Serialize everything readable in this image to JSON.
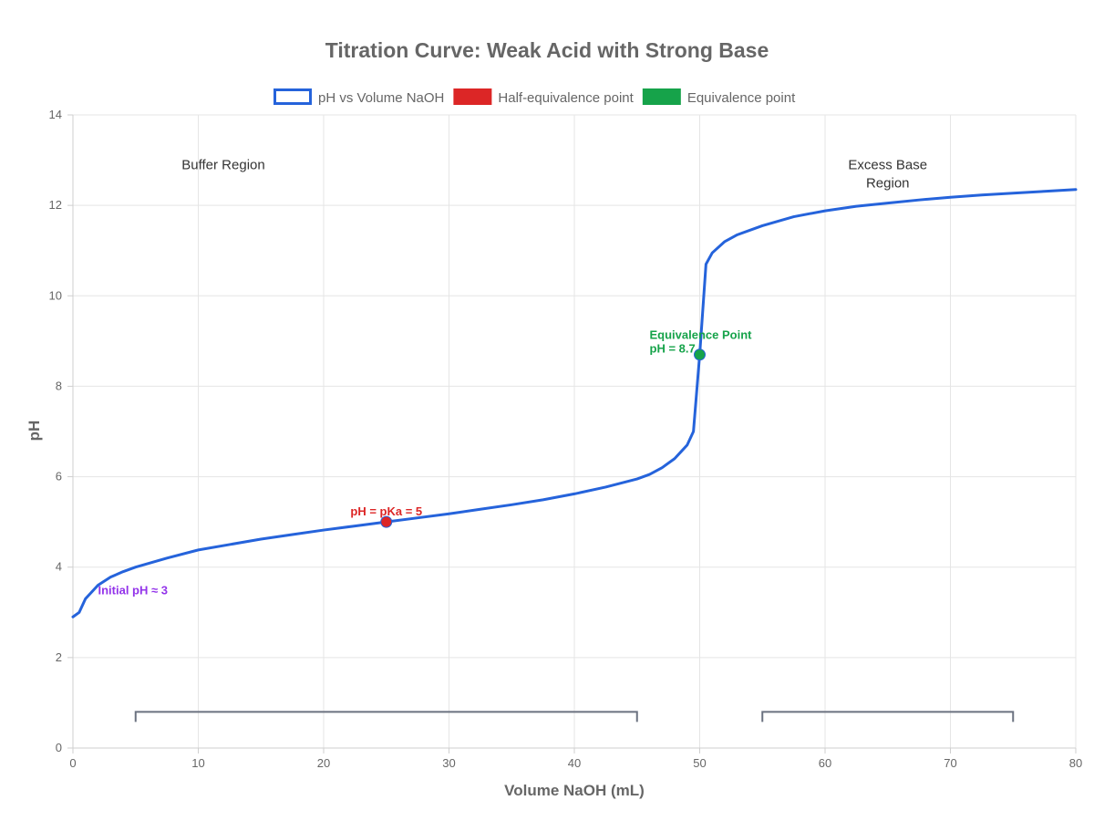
{
  "chart_data": {
    "type": "line",
    "title": "Titration Curve: Weak Acid with Strong Base",
    "xlabel": "Volume NaOH (mL)",
    "ylabel": "pH",
    "xlim": [
      0,
      80
    ],
    "ylim": [
      0,
      14
    ],
    "x_ticks": [
      "0",
      "10",
      "20",
      "30",
      "40",
      "50",
      "60",
      "70",
      "80"
    ],
    "y_ticks": [
      "0",
      "2",
      "4",
      "6",
      "8",
      "10",
      "12",
      "14"
    ],
    "grid": true,
    "legend_position": "top",
    "series": [
      {
        "name": "pH vs Volume NaOH",
        "color": "#2563db",
        "points": [
          [
            0,
            2.9
          ],
          [
            0.5,
            3.0
          ],
          [
            1,
            3.3
          ],
          [
            2,
            3.6
          ],
          [
            3,
            3.78
          ],
          [
            4,
            3.9
          ],
          [
            5,
            4.0
          ],
          [
            7.5,
            4.2
          ],
          [
            10,
            4.38
          ],
          [
            12.5,
            4.5
          ],
          [
            15,
            4.62
          ],
          [
            17.5,
            4.72
          ],
          [
            20,
            4.82
          ],
          [
            22.5,
            4.91
          ],
          [
            25,
            5.0
          ],
          [
            27.5,
            5.09
          ],
          [
            30,
            5.18
          ],
          [
            32.5,
            5.28
          ],
          [
            35,
            5.38
          ],
          [
            37.5,
            5.49
          ],
          [
            40,
            5.62
          ],
          [
            42.5,
            5.77
          ],
          [
            45,
            5.95
          ],
          [
            46,
            6.05
          ],
          [
            47,
            6.2
          ],
          [
            48,
            6.4
          ],
          [
            48.5,
            6.55
          ],
          [
            49,
            6.7
          ],
          [
            49.5,
            7.0
          ],
          [
            50,
            8.7
          ],
          [
            50.5,
            10.7
          ],
          [
            51,
            10.95
          ],
          [
            52,
            11.2
          ],
          [
            53,
            11.35
          ],
          [
            55,
            11.55
          ],
          [
            57.5,
            11.75
          ],
          [
            60,
            11.88
          ],
          [
            62.5,
            11.98
          ],
          [
            65,
            12.05
          ],
          [
            67.5,
            12.12
          ],
          [
            70,
            12.18
          ],
          [
            72.5,
            12.23
          ],
          [
            75,
            12.27
          ],
          [
            77.5,
            12.31
          ],
          [
            80,
            12.35
          ]
        ]
      },
      {
        "name": "Half-equivalence point",
        "color": "#dc2626",
        "points": [
          [
            25,
            5.0
          ]
        ]
      },
      {
        "name": "Equivalence point",
        "color": "#16a34a",
        "points": [
          [
            50,
            8.7
          ]
        ]
      }
    ],
    "annotations": [
      {
        "text": "Initial pH ≈ 3",
        "x": 2,
        "y": 3.5,
        "color": "#9333ea"
      },
      {
        "text": "pH = pKa = 5",
        "x": 25,
        "y": 5.25,
        "color": "#dc2626"
      },
      {
        "text": "Equivalence Point",
        "x": 46,
        "y": 9.15,
        "color": "#16a34a"
      },
      {
        "text": "pH = 8.7",
        "x": 46,
        "y": 8.85,
        "color": "#16a34a"
      }
    ],
    "regions": [
      {
        "label_lines": [
          "Buffer Region"
        ],
        "label_x": 12,
        "label_y": 12.9,
        "x_start": 5,
        "x_end": 45,
        "bracket_y": 0.8
      },
      {
        "label_lines": [
          "Excess Base",
          "Region"
        ],
        "label_x": 65,
        "label_y": 12.9,
        "x_start": 55,
        "x_end": 75,
        "bracket_y": 0.8
      }
    ],
    "bracket_color": "#6b7280"
  }
}
